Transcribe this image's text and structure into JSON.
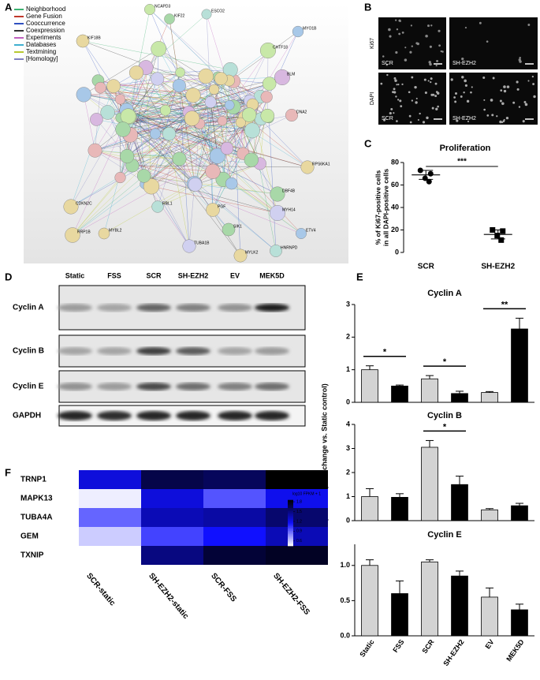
{
  "panel_labels": [
    "A",
    "B",
    "C",
    "D",
    "E",
    "F"
  ],
  "network": {
    "legend": [
      "Neighborhood",
      "Gene Fusion",
      "Cooccurrence",
      "Coexpression",
      "Experiments",
      "Databases",
      "Textmining",
      "[Homology]"
    ],
    "legend_colors": [
      "#3cb371",
      "#c0392b",
      "#3050c0",
      "#303030",
      "#c060c0",
      "#40b0d0",
      "#b8c830",
      "#8080c0"
    ],
    "genes": [
      "NCAPD3",
      "KIF22",
      "ESCO2",
      "KIF18B",
      "MYO1B",
      "CHTF18",
      "BLM",
      "DNA2",
      "RPS6KA1",
      "DBF4B",
      "MYH14",
      "ETV4",
      "HNRNPD",
      "MYLK2",
      "SIK1",
      "TUBA1B",
      "PGF",
      "RBL1",
      "MYBL2",
      "RRP1B",
      "CDKN2C"
    ]
  },
  "microscopy": {
    "rows": [
      "Ki67",
      "DAPI"
    ],
    "columns": [
      "SCR",
      "SH-EZH2"
    ]
  },
  "western_blot": {
    "columns": [
      "Static",
      "FSS",
      "SCR",
      "SH-EZH2",
      "EV",
      "MEK5D"
    ],
    "rows": [
      "Cyclin A",
      "Cyclin B",
      "Cyclin E",
      "GAPDH"
    ]
  },
  "chart_data": [
    {
      "type": "scatter",
      "title": "Proliferation",
      "ylabel": [
        "% of Ki67-positive cells",
        "in all DAPI-positive cells"
      ],
      "categories": [
        "SCR",
        "SH-EZH2"
      ],
      "values": [
        [
          73,
          70,
          66,
          63
        ],
        [
          20,
          19,
          15,
          11
        ]
      ],
      "means": [
        69,
        16
      ],
      "sd": [
        4,
        4
      ],
      "ylim": [
        0,
        80
      ],
      "yticks": [
        0,
        20,
        40,
        60,
        80
      ],
      "significance": [
        {
          "from": "SCR",
          "to": "SH-EZH2",
          "label": "***"
        }
      ],
      "color": "#000000"
    },
    {
      "type": "bar",
      "ylabel": "Protein expression (Fold change vs. Static control)",
      "categories": [
        "Static",
        "FSS",
        "SCR",
        "SH-EZH2",
        "EV",
        "MEK5D"
      ],
      "colors": [
        "#d3d3d3",
        "#000000",
        "#d3d3d3",
        "#000000",
        "#d3d3d3",
        "#000000"
      ],
      "series": [
        {
          "name": "Cyclin A",
          "values": [
            1.0,
            0.5,
            0.72,
            0.27,
            0.3,
            2.25
          ],
          "errors": [
            0.12,
            0.03,
            0.1,
            0.07,
            0.03,
            0.33
          ],
          "ylim": [
            0,
            3
          ],
          "yticks": [
            0,
            1,
            2,
            3
          ],
          "significance": [
            {
              "from": "Static",
              "to": "FSS",
              "label": "*"
            },
            {
              "from": "SCR",
              "to": "SH-EZH2",
              "label": "*"
            },
            {
              "from": "EV",
              "to": "MEK5D",
              "label": "**"
            }
          ]
        },
        {
          "name": "Cyclin B",
          "values": [
            1.0,
            0.97,
            3.05,
            1.5,
            0.45,
            0.62
          ],
          "errors": [
            0.33,
            0.15,
            0.28,
            0.35,
            0.05,
            0.1
          ],
          "ylim": [
            0,
            4
          ],
          "yticks": [
            0,
            1,
            2,
            3,
            4
          ],
          "significance": [
            {
              "from": "SCR",
              "to": "SH-EZH2",
              "label": "*"
            }
          ]
        },
        {
          "name": "Cyclin E",
          "values": [
            1.0,
            0.6,
            1.05,
            0.85,
            0.55,
            0.37
          ],
          "errors": [
            0.08,
            0.18,
            0.03,
            0.07,
            0.13,
            0.08
          ],
          "ylim": [
            0,
            1.3
          ],
          "yticks": [
            {
              "value": 0,
              "label": "0.0"
            },
            {
              "value": 0.5,
              "label": "0.5"
            },
            {
              "value": 1,
              "label": "1.0"
            }
          ],
          "significance": []
        }
      ]
    },
    {
      "type": "heatmap",
      "rows": [
        "TRNP1",
        "MAPK13",
        "TUBA4A",
        "GEM",
        "TXNIP"
      ],
      "columns": [
        "SCR-static",
        "SH-EZH2-static",
        "SCR-FSS",
        "SH-EZH2-FSS"
      ],
      "values": [
        [
          1.25,
          1.65,
          1.6,
          1.85
        ],
        [
          0.5,
          1.25,
          0.95,
          1.2
        ],
        [
          0.9,
          1.35,
          1.4,
          1.55
        ],
        [
          0.6,
          1.0,
          1.15,
          1.35
        ],
        [
          null,
          1.5,
          1.7,
          1.75
        ]
      ],
      "zlim": [
        0.45,
        1.85
      ],
      "zticks": [
        0.6,
        0.9,
        1.2,
        1.5,
        1.8
      ],
      "colorscale": [
        "#ffffff",
        "#1010ff",
        "#000000"
      ],
      "colorbar_label": "log10 FPKM + 1"
    }
  ]
}
